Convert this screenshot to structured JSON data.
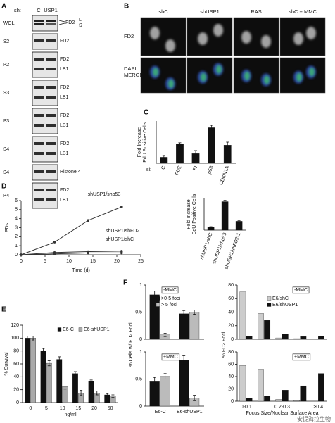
{
  "blots": {
    "panel": "A",
    "header": "sh:",
    "lanes": [
      "C",
      "USP1"
    ],
    "rows": [
      {
        "fraction": "WCL",
        "bands": [
          "FD2"
        ],
        "forms": [
          "L",
          "S"
        ]
      },
      {
        "fraction": "S2",
        "bands": [
          "FD2"
        ]
      },
      {
        "fraction": "P2",
        "bands": [
          "FD2",
          "LB1"
        ]
      },
      {
        "fraction": "S3",
        "bands": [
          "FD2",
          "LB1"
        ]
      },
      {
        "fraction": "P3",
        "bands": [
          "FD2",
          "LB1"
        ]
      },
      {
        "fraction": "S4",
        "bands": [
          "FD2",
          "LB1"
        ]
      },
      {
        "fraction": "S4",
        "bands": [
          "Histone 4"
        ]
      },
      {
        "fraction": "P4",
        "bands": [
          "FD2",
          "LB1"
        ]
      }
    ]
  },
  "microscopy": {
    "panel": "B",
    "columns": [
      "shC",
      "shUSP1",
      "RAS",
      "shC + MMC"
    ],
    "row_labels": [
      [
        "FD2"
      ],
      [
        "DAPI",
        "MERGE"
      ]
    ]
  },
  "chart_data": [
    {
      "type": "bar",
      "panel": "C",
      "y_label": [
        "Fold Increase",
        "EdU Positive Cells"
      ],
      "x_prefix": "si:",
      "categories": [
        "C",
        "FD2",
        "FI",
        "p53",
        "CDKN1A"
      ],
      "values": [
        1,
        3.2,
        1.6,
        5.9,
        3
      ],
      "errors": [
        0.3,
        0.2,
        0.5,
        0.4,
        0.5
      ],
      "color": "#111111",
      "ylim": [
        0,
        7
      ]
    },
    {
      "type": "line",
      "panel": "D",
      "y_label": "PDs",
      "x_label": "Time (d)",
      "x": [
        0,
        7,
        14,
        21
      ],
      "series": [
        {
          "name": "shUSP1/shp53",
          "color": "#333333",
          "values": [
            0,
            1.4,
            3.8,
            5.3
          ]
        },
        {
          "name": "shUSP1/shFD2",
          "color": "#333333",
          "values": [
            0,
            0.25,
            0.35,
            0.4
          ]
        },
        {
          "name": "shUSP1/shC",
          "color": "#333333",
          "values": [
            0,
            0.1,
            0.2,
            0.2
          ]
        }
      ],
      "xlim": [
        0,
        25
      ],
      "xticks": [
        0,
        5,
        10,
        15,
        20,
        25
      ],
      "ylim": [
        0,
        6
      ],
      "yticks": [
        0,
        1,
        2,
        3,
        4,
        5,
        6
      ]
    },
    {
      "type": "bar",
      "y_label": [
        "Fold Increase",
        "EdU Positive Cells"
      ],
      "categories": [
        "shUSP1/shC",
        "shUSP1/shp53",
        "shUSP1/shFD2-1"
      ],
      "values": [
        1,
        9,
        2.8
      ],
      "errors": [
        0.1,
        0.4,
        0.15
      ],
      "color": "#111111",
      "ylim": [
        0,
        10
      ]
    },
    {
      "type": "bar",
      "panel": "E",
      "y_label": "% Survival",
      "x_label": "ng/ml",
      "categories": [
        "0",
        "5",
        "10",
        "15",
        "20",
        "50"
      ],
      "series": [
        {
          "name": "E6-C",
          "color": "#111111",
          "values": [
            100,
            80,
            67,
            45,
            33,
            12
          ],
          "errors": [
            3,
            4,
            4,
            3,
            2,
            2
          ]
        },
        {
          "name": "E6-shUSP1",
          "color": "#aaaaaa",
          "values": [
            100,
            61,
            25,
            15,
            15,
            10
          ],
          "errors": [
            3,
            4,
            4,
            4,
            3,
            2
          ]
        }
      ],
      "ylim": [
        0,
        120
      ],
      "yticks": [
        0,
        20,
        40,
        60,
        80,
        100,
        120
      ]
    },
    {
      "type": "bar",
      "panel": "F",
      "y_label": "% Cells w/ FD2 Foci",
      "title": "-MMC",
      "categories": [
        null,
        null
      ],
      "series": [
        {
          "name": ">0-5 foci",
          "color": "#111111",
          "values": [
            0.82,
            0.47
          ],
          "errors": [
            0.07,
            0.06
          ]
        },
        {
          "name": "> 5 foci",
          "color": "#bbbbbb",
          "values": [
            0.08,
            0.5
          ],
          "errors": [
            0.03,
            0.04
          ]
        }
      ],
      "ylim": [
        0,
        1
      ],
      "yticks": [
        0,
        0.5,
        1
      ]
    },
    {
      "type": "bar",
      "title": "+MMC",
      "categories": [
        "E6-C",
        "E6-shUSP1"
      ],
      "series": [
        {
          "color": "#111111",
          "values": [
            0.45,
            0.85
          ],
          "errors": [
            0.08,
            0.08
          ]
        },
        {
          "color": "#bbbbbb",
          "values": [
            0.55,
            0.15
          ],
          "errors": [
            0.05,
            0.05
          ]
        }
      ],
      "ylim": [
        0,
        1
      ],
      "yticks": [
        0,
        0.5,
        1
      ]
    },
    {
      "type": "bar",
      "y_label": "% FD2 Foci",
      "title": "-MMC",
      "categories": [
        null,
        null,
        null,
        null,
        null
      ],
      "series": [
        {
          "name": "E6/shC",
          "color": "#cccccc",
          "values": [
            70,
            38,
            2,
            1,
            0
          ]
        },
        {
          "name": "E6/shUSP1",
          "color": "#111111",
          "values": [
            5,
            28,
            8,
            4,
            5
          ]
        }
      ],
      "ylim": [
        0,
        80
      ],
      "yticks": [
        0,
        20,
        40,
        60,
        80
      ]
    },
    {
      "type": "bar",
      "title": "+MMC",
      "x_label": "Focus Size/Nuclear Surface Area",
      "categories": [
        "0-0.1",
        null,
        "0.2-0.3",
        null,
        ">0.4"
      ],
      "series": [
        {
          "color": "#cccccc",
          "values": [
            58,
            52,
            3,
            1,
            0
          ]
        },
        {
          "color": "#111111",
          "values": [
            5,
            8,
            18,
            25,
            45
          ]
        }
      ],
      "ylim": [
        0,
        80
      ],
      "yticks": [
        0,
        20,
        40,
        60,
        80
      ]
    }
  ],
  "watermark": "安提海拉生物"
}
